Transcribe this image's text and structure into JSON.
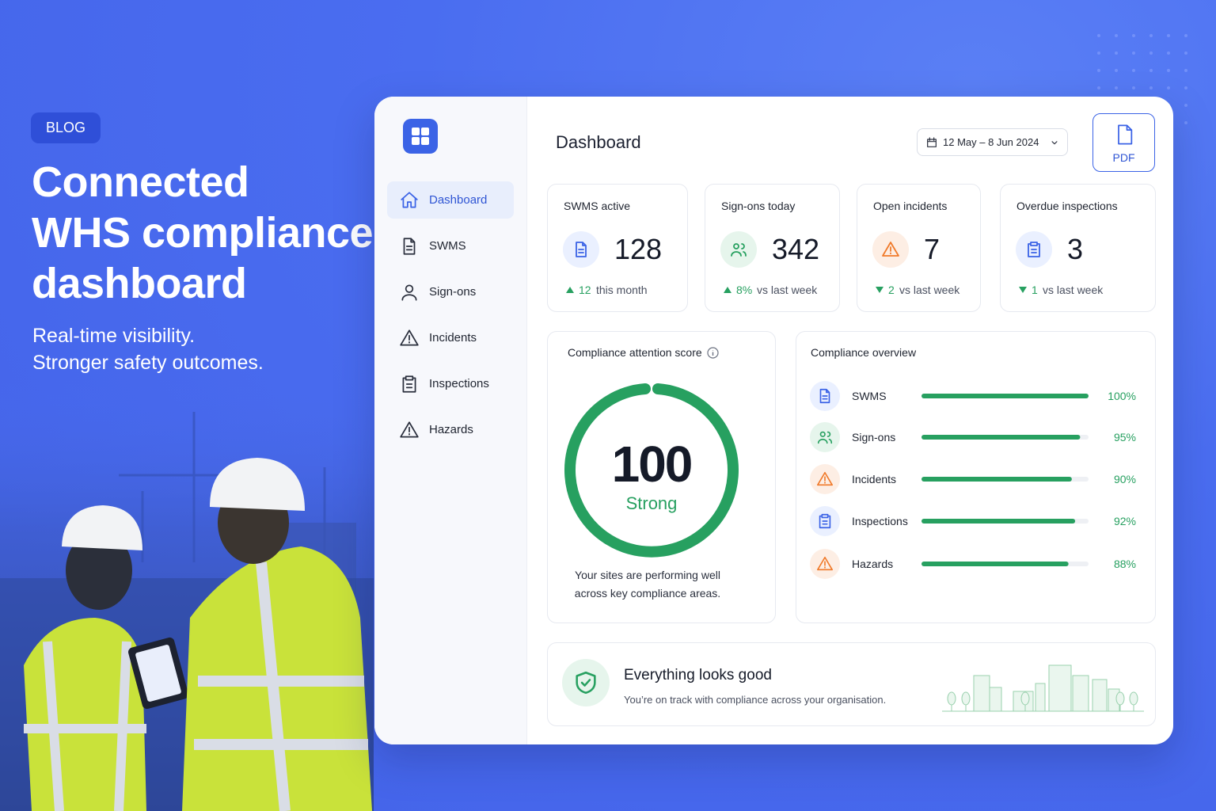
{
  "hero": {
    "badge": "BLOG",
    "title_lines": [
      "Connected",
      "WHS compliance",
      "dashboard"
    ],
    "subtitle_lines": [
      "Real-time visibility.",
      "Stronger safety outcomes."
    ]
  },
  "sidebar": {
    "items": [
      "Dashboard",
      "SWMS",
      "Sign-ons",
      "Incidents",
      "Inspections",
      "Hazards"
    ]
  },
  "header": {
    "title": "Dashboard",
    "date_range": "12 May – 8 Jun 2024",
    "export_button": "PDF"
  },
  "stats": [
    {
      "label": "SWMS active",
      "value": "128",
      "trend": "up",
      "delta": "12",
      "delta_text": "this month"
    },
    {
      "label": "Sign-ons today",
      "value": "342",
      "trend": "up",
      "delta": "8%",
      "delta_text": "vs last week"
    },
    {
      "label": "Open incidents",
      "value": "7",
      "trend": "down",
      "delta": "2",
      "delta_text": "vs last week"
    },
    {
      "label": "Overdue inspections",
      "value": "3",
      "trend": "down",
      "delta": "1",
      "delta_text": "vs last week"
    }
  ],
  "score": {
    "title": "Compliance attention score",
    "value": "100",
    "rating": "Strong",
    "description_lines": [
      "Your sites are performing well",
      "across key compliance areas."
    ]
  },
  "overview": {
    "title": "Compliance overview",
    "rows": [
      {
        "label": "SWMS",
        "value": 100,
        "value_label": "100%"
      },
      {
        "label": "Sign-ons",
        "value": 95,
        "value_label": "95%"
      },
      {
        "label": "Incidents",
        "value": 90,
        "value_label": "90%"
      },
      {
        "label": "Inspections",
        "value": 92,
        "value_label": "92%"
      },
      {
        "label": "Hazards",
        "value": 88,
        "value_label": "88%"
      }
    ]
  },
  "banner": {
    "title": "Everything looks good",
    "text": "You’re on track with compliance across your organisation."
  }
}
